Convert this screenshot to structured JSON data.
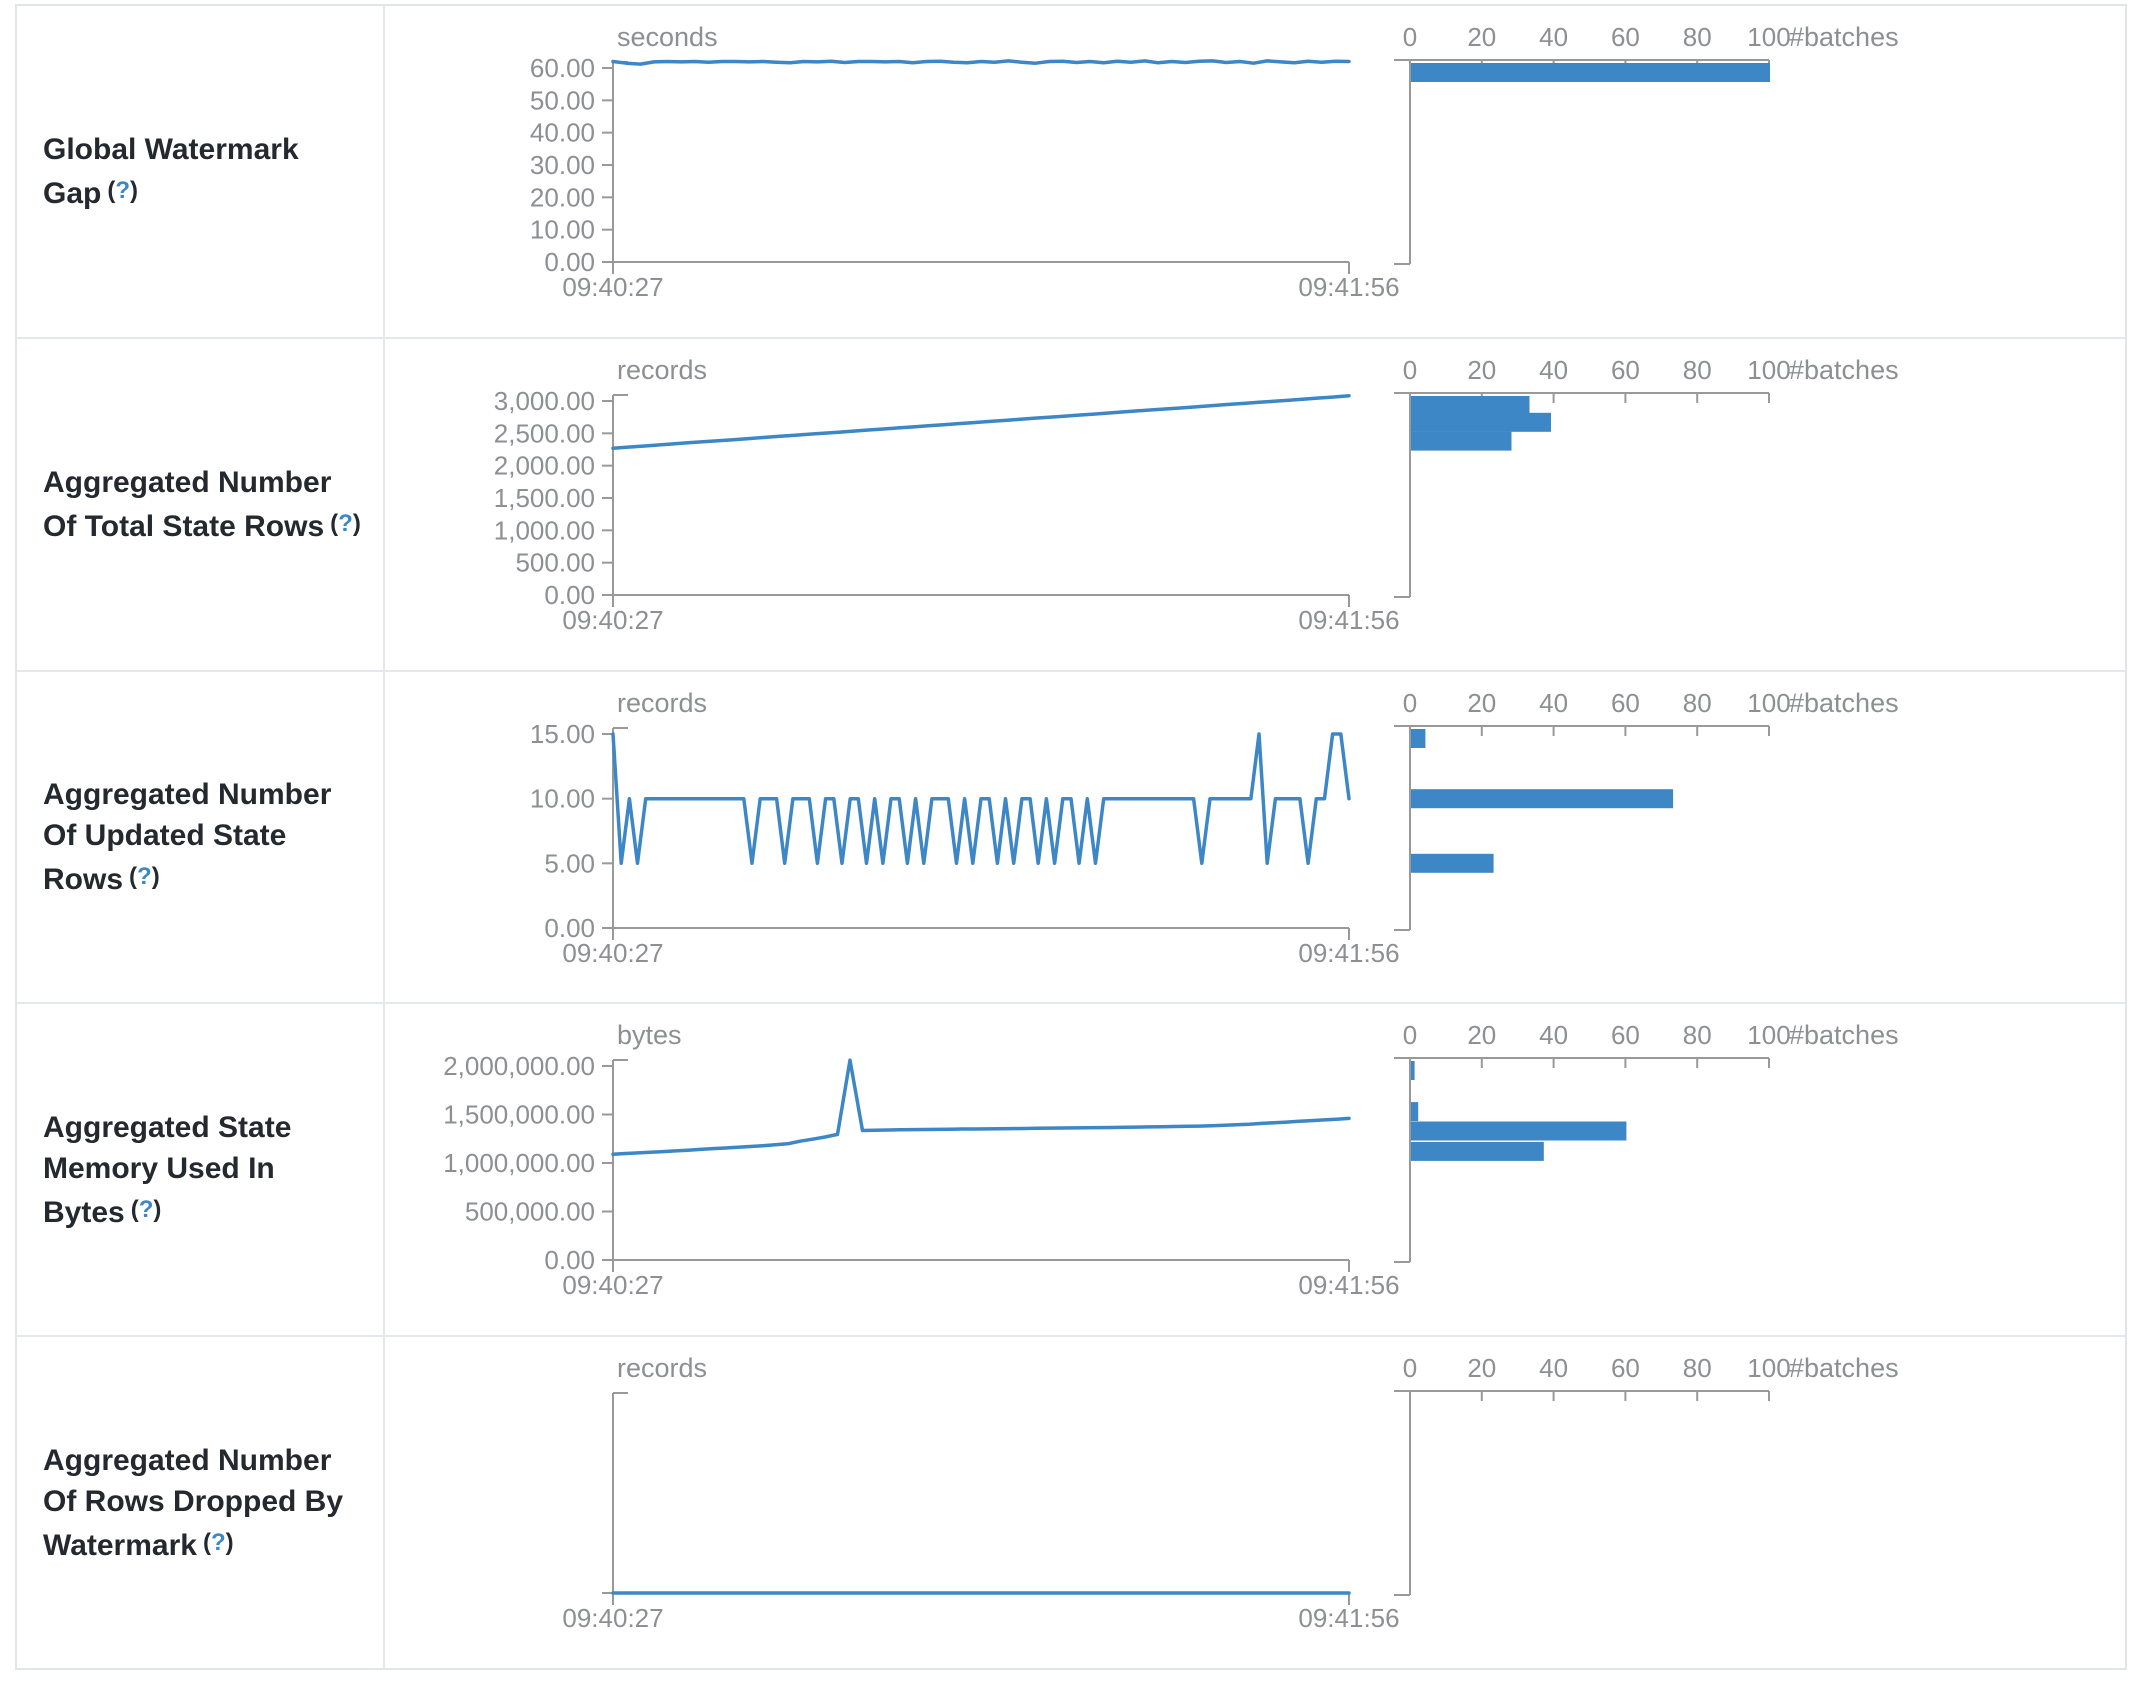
{
  "colors": {
    "accent": "#3d87c6",
    "axis_line": "#999999",
    "axis_text": "#8d8f92",
    "label_text": "#24292f",
    "border": "#e1e5e9",
    "help_link": "#3d87c6"
  },
  "hist_axis": {
    "tick_labels": [
      "0",
      "20",
      "40",
      "60",
      "80",
      "100"
    ],
    "tick_values": [
      0,
      20,
      40,
      60,
      80,
      100
    ],
    "unit_label": "#batches"
  },
  "chart_data": {
    "type": "line+histogram-dashboard",
    "x_axis_range": [
      "09:40:27",
      "09:41:56"
    ],
    "rows": [
      {
        "label": "Global Watermark Gap",
        "help_q": "?",
        "unit": "seconds",
        "x_labels": [
          "09:40:27",
          "09:41:56"
        ],
        "y_max": 60,
        "y_ticks": [
          {
            "v": 60,
            "t": "60.00"
          },
          {
            "v": 50,
            "t": "50.00"
          },
          {
            "v": 40,
            "t": "40.00"
          },
          {
            "v": 30,
            "t": "30.00"
          },
          {
            "v": 20,
            "t": "20.00"
          },
          {
            "v": 10,
            "t": "10.00"
          },
          {
            "v": 0,
            "t": "0.00"
          }
        ],
        "timeline": [
          62,
          61.5,
          61.2,
          61.9,
          62,
          61.9,
          62,
          61.8,
          62,
          62,
          61.9,
          62,
          61.8,
          61.6,
          62,
          61.9,
          62.1,
          61.7,
          62,
          62,
          61.9,
          62,
          61.6,
          62,
          62.1,
          61.8,
          61.6,
          62,
          61.8,
          62.2,
          61.8,
          61.5,
          62,
          62.1,
          61.7,
          62,
          61.6,
          62.1,
          61.8,
          62.2,
          61.6,
          62,
          61.7,
          62.1,
          62.2,
          61.7,
          62,
          61.5,
          62.2,
          61.9,
          61.6,
          62.1,
          61.8,
          62.1,
          62
        ],
        "histogram": [
          {
            "value": 61.5,
            "count": 100
          }
        ]
      },
      {
        "label": "Aggregated Number Of Total State Rows",
        "help_q": "?",
        "unit": "records",
        "x_labels": [
          "09:40:27",
          "09:41:56"
        ],
        "y_max": 3000,
        "y_ticks": [
          {
            "v": 3000,
            "t": "3,000.00"
          },
          {
            "v": 2500,
            "t": "2,500.00"
          },
          {
            "v": 2000,
            "t": "2,000.00"
          },
          {
            "v": 1500,
            "t": "1,500.00"
          },
          {
            "v": 1000,
            "t": "1,000.00"
          },
          {
            "v": 500,
            "t": "500.00"
          },
          {
            "v": 0,
            "t": "0.00"
          }
        ],
        "timeline": [
          2270,
          2287,
          2303,
          2320,
          2336,
          2353,
          2369,
          2386,
          2402,
          2419,
          2435,
          2452,
          2468,
          2485,
          2501,
          2518,
          2534,
          2551,
          2567,
          2584,
          2600,
          2617,
          2633,
          2650,
          2666,
          2683,
          2699,
          2716,
          2732,
          2749,
          2765,
          2782,
          2798,
          2815,
          2831,
          2848,
          2864,
          2881,
          2897,
          2914,
          2930,
          2947,
          2963,
          2980,
          2996,
          3013,
          3029,
          3046,
          3062,
          3080
        ],
        "histogram": [
          {
            "value": 2950,
            "count": 33
          },
          {
            "value": 2670,
            "count": 39
          },
          {
            "value": 2380,
            "count": 28
          }
        ]
      },
      {
        "label": "Aggregated Number Of Updated State Rows",
        "help_q": "?",
        "unit": "records",
        "x_labels": [
          "09:40:27",
          "09:41:56"
        ],
        "y_max": 15,
        "y_ticks": [
          {
            "v": 15,
            "t": "15.00"
          },
          {
            "v": 10,
            "t": "10.00"
          },
          {
            "v": 5,
            "t": "5.00"
          },
          {
            "v": 0,
            "t": "0.00"
          }
        ],
        "timeline": [
          15,
          5,
          10,
          5,
          10,
          10,
          10,
          10,
          10,
          10,
          10,
          10,
          10,
          10,
          10,
          10,
          10,
          5,
          10,
          10,
          10,
          5,
          10,
          10,
          10,
          5,
          10,
          10,
          5,
          10,
          10,
          5,
          10,
          5,
          10,
          10,
          5,
          10,
          5,
          10,
          10,
          10,
          5,
          10,
          5,
          10,
          10,
          5,
          10,
          5,
          10,
          10,
          5,
          10,
          5,
          10,
          10,
          5,
          10,
          5,
          10,
          10,
          10,
          10,
          10,
          10,
          10,
          10,
          10,
          10,
          10,
          10,
          5,
          10,
          10,
          10,
          10,
          10,
          10,
          15,
          5,
          10,
          10,
          10,
          10,
          5,
          10,
          10,
          15,
          15,
          10
        ],
        "histogram": [
          {
            "value": 15,
            "count": 4
          },
          {
            "value": 10,
            "count": 73
          },
          {
            "value": 5,
            "count": 23
          }
        ]
      },
      {
        "label": "Aggregated State Memory Used In Bytes",
        "help_q": "?",
        "unit": "bytes",
        "x_labels": [
          "09:40:27",
          "09:41:56"
        ],
        "y_max": 2000000,
        "y_ticks": [
          {
            "v": 2000000,
            "t": "2,000,000.00"
          },
          {
            "v": 1500000,
            "t": "1,500,000.00"
          },
          {
            "v": 1000000,
            "t": "1,000,000.00"
          },
          {
            "v": 500000,
            "t": "500,000.00"
          },
          {
            "v": 0,
            "t": "0.00"
          }
        ],
        "timeline": [
          1090000,
          1098000,
          1104000,
          1110000,
          1118000,
          1125000,
          1132000,
          1140000,
          1148000,
          1155000,
          1162000,
          1170000,
          1178000,
          1188000,
          1198000,
          1225000,
          1245000,
          1268000,
          1295000,
          2060000,
          1335000,
          1338000,
          1340000,
          1342000,
          1344000,
          1345000,
          1346000,
          1348000,
          1350000,
          1350000,
          1352000,
          1353000,
          1355000,
          1356000,
          1358000,
          1360000,
          1361000,
          1362000,
          1364000,
          1365000,
          1366000,
          1368000,
          1370000,
          1372000,
          1374000,
          1376000,
          1378000,
          1380000,
          1385000,
          1390000,
          1395000,
          1400000,
          1408000,
          1415000,
          1422000,
          1430000,
          1437000,
          1444000,
          1450000,
          1460000
        ],
        "histogram": [
          {
            "value": 2050000,
            "count": 1
          },
          {
            "value": 1530000,
            "count": 2
          },
          {
            "value": 1330000,
            "count": 60
          },
          {
            "value": 1120000,
            "count": 37
          }
        ]
      },
      {
        "label": "Aggregated Number Of Rows Dropped By Watermark",
        "help_q": "?",
        "unit": "records",
        "x_labels": [
          "09:40:27",
          "09:41:56"
        ],
        "y_max": null,
        "y_ticks": [],
        "timeline": [
          0,
          0,
          0,
          0,
          0,
          0,
          0,
          0,
          0,
          0
        ],
        "histogram": []
      }
    ]
  }
}
